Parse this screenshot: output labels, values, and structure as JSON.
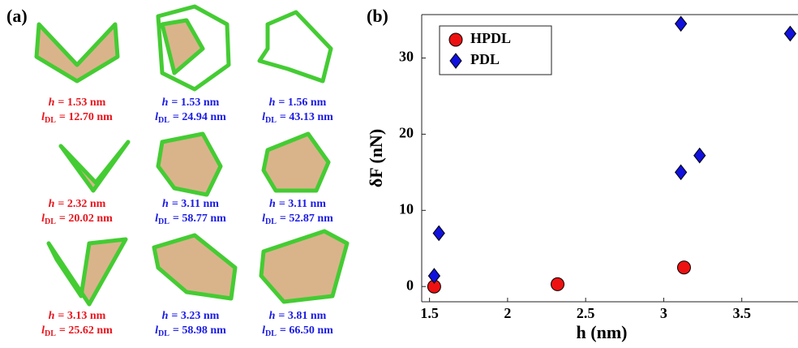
{
  "panel_a": {
    "label": "(a)",
    "symbols": {
      "h": "h",
      "l": "l",
      "sub": "DL"
    },
    "items": [
      {
        "h": "= 1.53 nm",
        "l": "= 12.70 nm",
        "color": "#e8141c"
      },
      {
        "h": "= 1.53 nm",
        "l": "= 24.94 nm",
        "color": "#1a1ae6"
      },
      {
        "h": "= 1.56 nm",
        "l": "= 43.13 nm",
        "color": "#1a1ae6"
      },
      {
        "h": "= 2.32 nm",
        "l": "= 20.02 nm",
        "color": "#e8141c"
      },
      {
        "h": "= 3.11 nm",
        "l": "= 58.77 nm",
        "color": "#1a1ae6"
      },
      {
        "h": "= 3.11 nm",
        "l": "= 52.87 nm",
        "color": "#1a1ae6"
      },
      {
        "h": "= 3.13 nm",
        "l": "= 25.62 nm",
        "color": "#e8141c"
      },
      {
        "h": "= 3.23 nm",
        "l": "= 58.98 nm",
        "color": "#1a1ae6"
      },
      {
        "h": "= 3.81 nm",
        "l": "= 66.50 nm",
        "color": "#1a1ae6"
      }
    ]
  },
  "chart_data": {
    "type": "scatter",
    "panel_label": "(b)",
    "xlabel": "h (nm)",
    "ylabel": "δF (nN)",
    "xlim": [
      1.45,
      3.86
    ],
    "ylim": [
      -2,
      35.7
    ],
    "xticks": [
      1.5,
      2,
      2.5,
      3,
      3.5
    ],
    "yticks": [
      0,
      10,
      20,
      30
    ],
    "legend": "upper left",
    "series": [
      {
        "name": "HPDL",
        "color": "#ee1111",
        "marker": "circle",
        "x": [
          1.53,
          2.32,
          3.13
        ],
        "values": [
          0,
          0.3,
          2.5
        ]
      },
      {
        "name": "PDL",
        "color": "#1111dd",
        "marker": "diamond",
        "x": [
          1.53,
          1.56,
          3.11,
          3.11,
          3.23,
          3.81
        ],
        "values": [
          1.4,
          7,
          34.5,
          15,
          17.2,
          33.2
        ]
      }
    ]
  }
}
